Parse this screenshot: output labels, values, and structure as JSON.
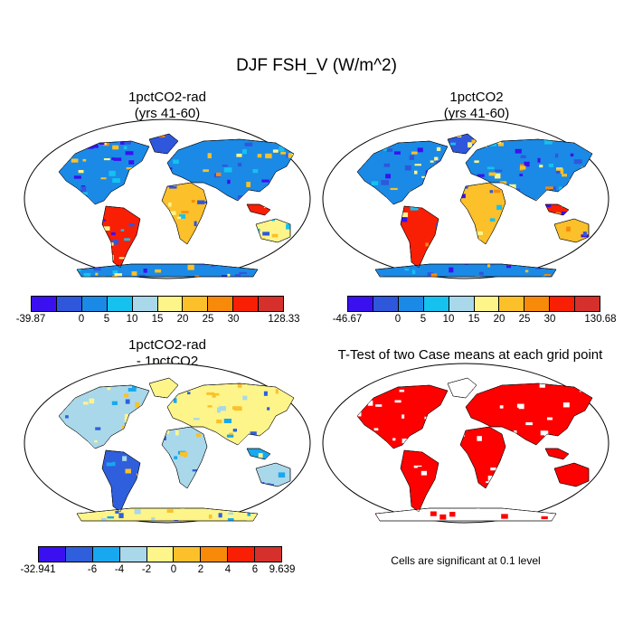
{
  "title": "DJF FSH_V (W/m^2)",
  "palette_main": [
    "#3b10f0",
    "#2f57dc",
    "#1a8ae6",
    "#15c1ef",
    "#a9d8ea",
    "#fdf58a",
    "#fbc02a",
    "#f88a0a",
    "#f81f05",
    "#d6302c"
  ],
  "palette_diff": [
    "#3b10f0",
    "#2f5fdc",
    "#18a8ef",
    "#a9d8ea",
    "#fdf58a",
    "#fbc02a",
    "#f88a0a",
    "#f81f05",
    "#d6302c"
  ],
  "panels": [
    {
      "title_line1": "1pctCO2-rad",
      "title_line2": "(yrs 41-60)",
      "colorbar": [
        "-39.87",
        "0",
        "5",
        "10",
        "15",
        "20",
        "25",
        "30",
        "128.33"
      ]
    },
    {
      "title_line1": "1pctCO2",
      "title_line2": "(yrs 41-60)",
      "colorbar": [
        "-46.67",
        "0",
        "5",
        "10",
        "15",
        "20",
        "25",
        "30",
        "130.68"
      ]
    },
    {
      "title_line1": "1pctCO2-rad",
      "title_line2": "- 1pctCO2",
      "colorbar": [
        "-32.941",
        "-6",
        "-4",
        "-2",
        "0",
        "2",
        "4",
        "6",
        "9.639"
      ]
    },
    {
      "title_line1": "T-Test of two Case means at each grid point",
      "note": "Cells are significant at 0.1 level",
      "significant_color": "#ff0000"
    }
  ]
}
